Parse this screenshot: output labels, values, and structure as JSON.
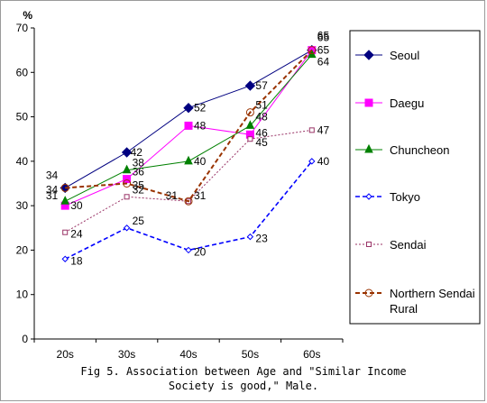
{
  "chart_data": {
    "type": "line",
    "title": "",
    "ylabel": "%",
    "xlabel": "",
    "categories": [
      "20s",
      "30s",
      "40s",
      "50s",
      "60s"
    ],
    "ylim": [
      0,
      70
    ],
    "yticks": [
      0,
      10,
      20,
      30,
      40,
      50,
      60,
      70
    ],
    "grid": false,
    "legend": "right",
    "series": [
      {
        "name": "Seoul",
        "values": [
          34,
          42,
          52,
          57,
          65
        ],
        "labels": [
          "34",
          "42",
          "52",
          "57",
          "65"
        ],
        "color": "#000080",
        "marker": "diamond",
        "dash": "solid"
      },
      {
        "name": "Daegu",
        "values": [
          30,
          36,
          48,
          46,
          65
        ],
        "labels": [
          "30",
          "36",
          "48",
          "46",
          "65"
        ],
        "color": "#ff00ff",
        "marker": "square",
        "dash": "solid"
      },
      {
        "name": "Chuncheon",
        "values": [
          31,
          38,
          40,
          48,
          64
        ],
        "labels": [
          "31",
          "38",
          "40",
          "48",
          "64"
        ],
        "color": "#008000",
        "marker": "triangle",
        "dash": "solid"
      },
      {
        "name": "Tokyo",
        "values": [
          18,
          25,
          20,
          23,
          40
        ],
        "labels": [
          "18",
          "25",
          "20",
          "23",
          "40"
        ],
        "color": "#0000ff",
        "marker": "diamond-open",
        "dash": "dashed"
      },
      {
        "name": "Sendai",
        "values": [
          24,
          32,
          31,
          45,
          47
        ],
        "labels": [
          "24",
          "32",
          "31",
          "45",
          "47"
        ],
        "color": "#993366",
        "marker": "square-open",
        "dash": "dotted"
      },
      {
        "name": "Northern Sendai\nRural",
        "values": [
          34,
          35,
          31,
          51,
          65
        ],
        "labels": [
          "34",
          "35",
          "31",
          "51",
          "65"
        ],
        "color": "#993300",
        "marker": "circle-open",
        "dash": "dashed"
      }
    ]
  },
  "caption": "Fig 5. Association between Age and \"Similar Income\nSociety is good,\" Male."
}
